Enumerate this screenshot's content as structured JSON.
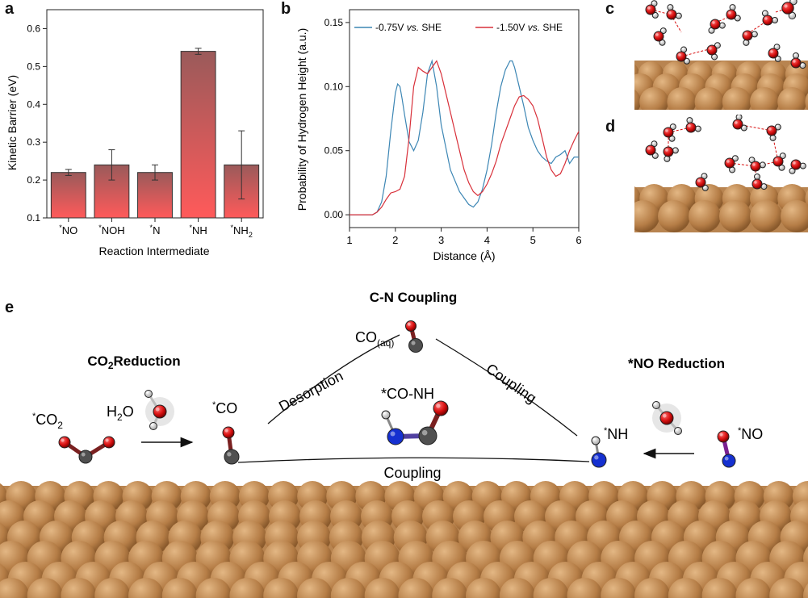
{
  "panel_labels": {
    "a": "a",
    "b": "b",
    "c": "c",
    "d": "d",
    "e": "e"
  },
  "colors": {
    "bar_top": "#9a5a5a",
    "bar_bottom": "#ff5a5a",
    "series1": "#3c86b4",
    "series2": "#d8303a",
    "copper": "#c8935a",
    "oxygen": "#d81010",
    "nitrogen": "#1530d0",
    "carbon": "#505050",
    "hydrogen": "#f2f2f2"
  },
  "chart_data": [
    {
      "type": "bar",
      "categories": [
        "*NO",
        "*NOH",
        "*N",
        "*NH",
        "*NH2"
      ],
      "category_labels": [
        {
          "sup": "*",
          "main": "NO",
          "sub": ""
        },
        {
          "sup": "*",
          "main": "NOH",
          "sub": ""
        },
        {
          "sup": "*",
          "main": "N",
          "sub": ""
        },
        {
          "sup": "*",
          "main": "NH",
          "sub": ""
        },
        {
          "sup": "*",
          "main": "NH",
          "sub": "2"
        }
      ],
      "values": [
        0.22,
        0.24,
        0.22,
        0.54,
        0.24
      ],
      "errors": [
        0.008,
        0.04,
        0.02,
        0.008,
        0.09
      ],
      "xlabel": "Reaction Intermediate",
      "ylabel": "Kinetic Barrier (eV)",
      "ylim": [
        0.1,
        0.65
      ],
      "yticks": [
        0.1,
        0.2,
        0.3,
        0.4,
        0.5,
        0.6
      ],
      "ytick_labels": [
        "0.1",
        "0.2",
        "0.3",
        "0.4",
        "0.5",
        "0.6"
      ]
    },
    {
      "type": "line",
      "xlabel": "Distance (Å)",
      "ylabel": "Probability of Hydrogen Height (a.u.)",
      "xlim": [
        1,
        6
      ],
      "ylim": [
        -0.01,
        0.16
      ],
      "xticks": [
        1,
        2,
        3,
        4,
        5,
        6
      ],
      "xtick_labels": [
        "1",
        "2",
        "3",
        "4",
        "5",
        "6"
      ],
      "yticks": [
        0.0,
        0.05,
        0.1,
        0.15
      ],
      "ytick_labels": [
        "0.00",
        "0.05",
        "0.10",
        "0.15"
      ],
      "legend_position": "top",
      "series": [
        {
          "name": "-0.75V vs. SHE",
          "name_parts": {
            "value": "-0.75V ",
            "ref": "vs.",
            "tail": " SHE"
          },
          "x": [
            1.0,
            1.5,
            1.6,
            1.7,
            1.8,
            1.9,
            2.0,
            2.05,
            2.1,
            2.15,
            2.2,
            2.3,
            2.4,
            2.5,
            2.6,
            2.7,
            2.8,
            2.9,
            3.0,
            3.2,
            3.4,
            3.6,
            3.7,
            3.8,
            3.9,
            4.0,
            4.1,
            4.2,
            4.3,
            4.4,
            4.5,
            4.55,
            4.6,
            4.7,
            4.8,
            4.9,
            5.0,
            5.1,
            5.2,
            5.3,
            5.4,
            5.5,
            5.6,
            5.7,
            5.8,
            5.9,
            6.0
          ],
          "y": [
            0.0,
            0.0,
            0.002,
            0.01,
            0.03,
            0.065,
            0.095,
            0.102,
            0.1,
            0.09,
            0.078,
            0.057,
            0.05,
            0.058,
            0.08,
            0.11,
            0.12,
            0.1,
            0.07,
            0.035,
            0.018,
            0.008,
            0.006,
            0.01,
            0.02,
            0.035,
            0.055,
            0.08,
            0.1,
            0.113,
            0.12,
            0.12,
            0.115,
            0.1,
            0.085,
            0.068,
            0.058,
            0.05,
            0.045,
            0.042,
            0.04,
            0.045,
            0.047,
            0.05,
            0.04,
            0.045,
            0.045
          ]
        },
        {
          "name": "-1.50V vs. SHE",
          "name_parts": {
            "value": "-1.50V ",
            "ref": "vs.",
            "tail": " SHE"
          },
          "x": [
            1.0,
            1.5,
            1.6,
            1.7,
            1.8,
            1.9,
            2.0,
            2.1,
            2.2,
            2.3,
            2.4,
            2.5,
            2.6,
            2.7,
            2.8,
            2.9,
            3.0,
            3.1,
            3.2,
            3.3,
            3.4,
            3.5,
            3.6,
            3.7,
            3.8,
            3.9,
            4.0,
            4.1,
            4.2,
            4.3,
            4.4,
            4.5,
            4.6,
            4.7,
            4.8,
            4.9,
            5.0,
            5.1,
            5.2,
            5.3,
            5.4,
            5.5,
            5.6,
            5.7,
            5.8,
            5.9,
            6.0
          ],
          "y": [
            0.0,
            0.0,
            0.002,
            0.006,
            0.012,
            0.017,
            0.018,
            0.02,
            0.03,
            0.06,
            0.1,
            0.115,
            0.112,
            0.11,
            0.115,
            0.12,
            0.11,
            0.095,
            0.08,
            0.065,
            0.05,
            0.035,
            0.025,
            0.018,
            0.015,
            0.018,
            0.024,
            0.032,
            0.042,
            0.055,
            0.065,
            0.075,
            0.085,
            0.092,
            0.093,
            0.09,
            0.085,
            0.075,
            0.06,
            0.045,
            0.035,
            0.03,
            0.032,
            0.04,
            0.05,
            0.058,
            0.065
          ]
        }
      ]
    }
  ],
  "scheme": {
    "section_cn": "C-N Coupling",
    "section_co2": {
      "main": "CO",
      "sub": "2",
      "tail": "Reduction"
    },
    "section_no": "*NO Reduction",
    "co2": {
      "sup": "*",
      "main": "CO",
      "sub": "2"
    },
    "water_left": {
      "main": "H",
      "sub": "2",
      "tail": "O"
    },
    "co": {
      "sup": "*",
      "main": "CO"
    },
    "co_aq": {
      "main": "CO",
      "sub": "(aq)"
    },
    "desorption": "Desorption",
    "coupling_right": "Coupling",
    "coupling_bottom": "Coupling",
    "co_nh": "*CO-NH",
    "nh": {
      "sup": "*",
      "main": "NH"
    },
    "no": {
      "sup": "*",
      "main": "NO"
    }
  }
}
